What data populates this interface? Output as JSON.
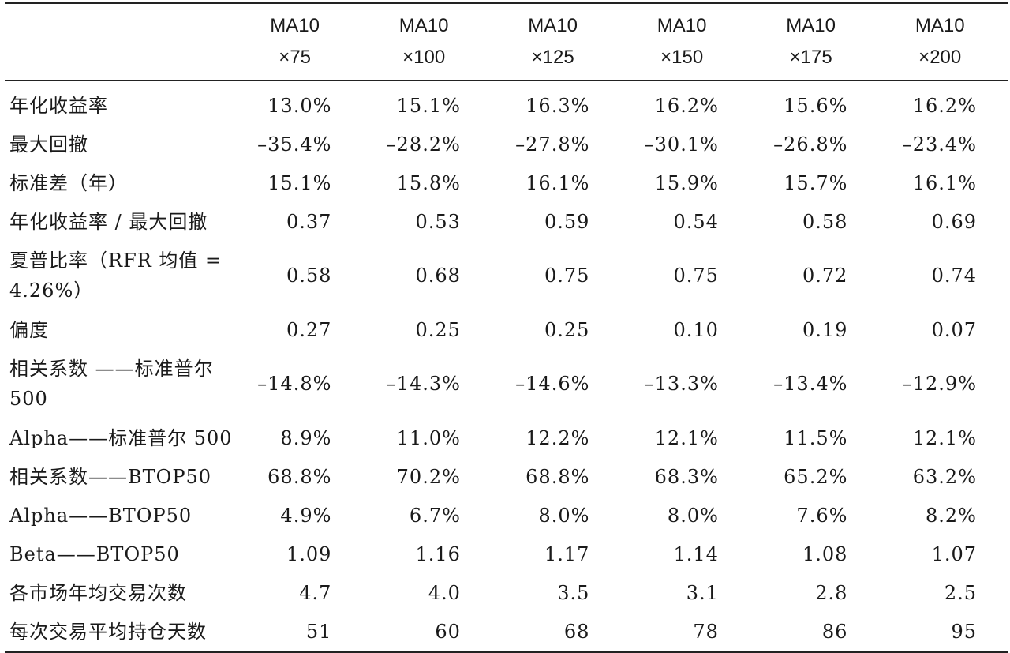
{
  "columns": [
    {
      "line1": "MA10",
      "line2": "×75"
    },
    {
      "line1": "MA10",
      "line2": "×100"
    },
    {
      "line1": "MA10",
      "line2": "×125"
    },
    {
      "line1": "MA10",
      "line2": "×150"
    },
    {
      "line1": "MA10",
      "line2": "×175"
    },
    {
      "line1": "MA10",
      "line2": "×200"
    }
  ],
  "rows": [
    {
      "label": "年化收益率",
      "values": [
        "13.0%",
        "15.1%",
        "16.3%",
        "16.2%",
        "15.6%",
        "16.2%"
      ]
    },
    {
      "label": "最大回撤",
      "values": [
        "–35.4%",
        "–28.2%",
        "–27.8%",
        "–30.1%",
        "–26.8%",
        "–23.4%"
      ]
    },
    {
      "label": "标准差（年）",
      "values": [
        "15.1%",
        "15.8%",
        "16.1%",
        "15.9%",
        "15.7%",
        "16.1%"
      ]
    },
    {
      "label": "年化收益率 / 最大回撤",
      "values": [
        "0.37",
        "0.53",
        "0.59",
        "0.54",
        "0.58",
        "0.69"
      ]
    },
    {
      "label": "夏普比率（RFR 均值 = 4.26%）",
      "values": [
        "0.58",
        "0.68",
        "0.75",
        "0.75",
        "0.72",
        "0.74"
      ]
    },
    {
      "label": "偏度",
      "values": [
        "0.27",
        "0.25",
        "0.25",
        "0.10",
        "0.19",
        "0.07"
      ]
    },
    {
      "label": "相关系数 ——标准普尔 500",
      "values": [
        "–14.8%",
        "–14.3%",
        "–14.6%",
        "–13.3%",
        "–13.4%",
        "–12.9%"
      ]
    },
    {
      "label": "Alpha——标准普尔 500",
      "values": [
        "8.9%",
        "11.0%",
        "12.2%",
        "12.1%",
        "11.5%",
        "12.1%"
      ]
    },
    {
      "label": "相关系数——BTOP50",
      "values": [
        "68.8%",
        "70.2%",
        "68.8%",
        "68.3%",
        "65.2%",
        "63.2%"
      ]
    },
    {
      "label": "Alpha——BTOP50",
      "values": [
        "4.9%",
        "6.7%",
        "8.0%",
        "8.0%",
        "7.6%",
        "8.2%"
      ]
    },
    {
      "label": "Beta——BTOP50",
      "values": [
        "1.09",
        "1.16",
        "1.17",
        "1.14",
        "1.08",
        "1.07"
      ]
    },
    {
      "label": "各市场年均交易次数",
      "values": [
        "4.7",
        "4.0",
        "3.5",
        "3.1",
        "2.8",
        "2.5"
      ]
    },
    {
      "label": "每次交易平均持仓天数",
      "values": [
        "51",
        "60",
        "68",
        "78",
        "86",
        "95"
      ]
    }
  ]
}
